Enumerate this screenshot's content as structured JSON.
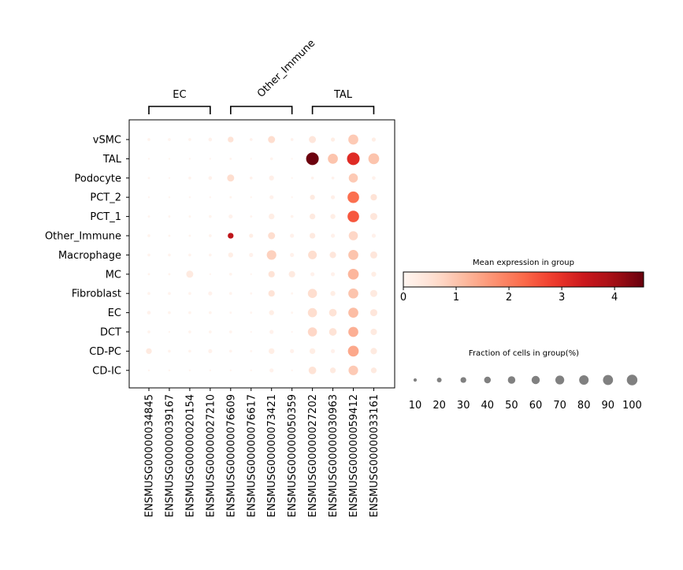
{
  "chart_data": {
    "type": "dotplot",
    "genes": [
      "ENSMUSG00000034845",
      "ENSMUSG00000039167",
      "ENSMUSG00000020154",
      "ENSMUSG00000027210",
      "ENSMUSG00000076609",
      "ENSMUSG00000076617",
      "ENSMUSG00000073421",
      "ENSMUSG00000050359",
      "ENSMUSG00000027202",
      "ENSMUSG00000030963",
      "ENSMUSG00000059412",
      "ENSMUSG00000033161"
    ],
    "cell_types": [
      "vSMC",
      "TAL",
      "Podocyte",
      "PCT_2",
      "PCT_1",
      "Other_Immune",
      "Macrophage",
      "MC",
      "Fibroblast",
      "EC",
      "DCT",
      "CD-PC",
      "CD-IC"
    ],
    "gene_groups": [
      {
        "label": "EC",
        "start": 0,
        "end": 3
      },
      {
        "label": "Other_Immune",
        "start": 4,
        "end": 7
      },
      {
        "label": "TAL",
        "start": 8,
        "end": 11
      }
    ],
    "mean_expression": [
      [
        0.05,
        0.02,
        0.05,
        0.1,
        0.5,
        0.1,
        0.6,
        0.1,
        0.4,
        0.2,
        0.9,
        0.2
      ],
      [
        0.02,
        0.01,
        0.02,
        0.02,
        0.05,
        0.02,
        0.05,
        0.02,
        4.5,
        1.0,
        3.1,
        1.0
      ],
      [
        0.02,
        0.02,
        0.05,
        0.1,
        0.6,
        0.1,
        0.15,
        0.02,
        0.1,
        0.1,
        0.9,
        0.1
      ],
      [
        0.02,
        0.01,
        0.02,
        0.02,
        0.05,
        0.02,
        0.1,
        0.02,
        0.3,
        0.15,
        2.2,
        0.5
      ],
      [
        0.02,
        0.02,
        0.03,
        0.03,
        0.1,
        0.02,
        0.2,
        0.05,
        0.3,
        0.2,
        2.5,
        0.4
      ],
      [
        0.05,
        0.03,
        0.03,
        0.05,
        3.6,
        0.2,
        0.6,
        0.1,
        0.3,
        0.1,
        0.7,
        0.1
      ],
      [
        0.05,
        0.05,
        0.05,
        0.05,
        0.2,
        0.1,
        0.8,
        0.1,
        0.6,
        0.4,
        1.0,
        0.4
      ],
      [
        0.05,
        0.05,
        0.3,
        0.02,
        0.05,
        0.02,
        0.5,
        0.3,
        0.1,
        0.1,
        1.2,
        0.2
      ],
      [
        0.05,
        0.05,
        0.05,
        0.1,
        0.05,
        0.02,
        0.5,
        0.02,
        0.6,
        0.2,
        1.0,
        0.3
      ],
      [
        0.1,
        0.05,
        0.05,
        0.05,
        0.02,
        0.02,
        0.2,
        0.02,
        0.6,
        0.5,
        1.1,
        0.4
      ],
      [
        0.05,
        0.02,
        0.05,
        0.05,
        0.05,
        0.02,
        0.1,
        0.02,
        0.7,
        0.5,
        1.3,
        0.3
      ],
      [
        0.3,
        0.05,
        0.05,
        0.1,
        0.05,
        0.02,
        0.2,
        0.1,
        0.2,
        0.1,
        1.4,
        0.3
      ],
      [
        0.02,
        0.02,
        0.02,
        0.02,
        0.02,
        0.02,
        0.1,
        0.02,
        0.5,
        0.3,
        0.9,
        0.3
      ]
    ],
    "fraction_of_cells": [
      [
        5,
        5,
        5,
        8,
        20,
        5,
        30,
        5,
        30,
        10,
        60,
        10
      ],
      [
        2,
        2,
        2,
        2,
        3,
        2,
        5,
        2,
        95,
        60,
        95,
        70
      ],
      [
        3,
        2,
        5,
        8,
        30,
        5,
        15,
        2,
        5,
        5,
        50,
        8
      ],
      [
        2,
        2,
        2,
        2,
        3,
        2,
        10,
        2,
        15,
        10,
        80,
        25
      ],
      [
        3,
        3,
        3,
        5,
        10,
        3,
        20,
        5,
        20,
        15,
        80,
        30
      ],
      [
        5,
        3,
        3,
        5,
        20,
        10,
        30,
        10,
        20,
        10,
        50,
        10
      ],
      [
        5,
        5,
        5,
        5,
        15,
        10,
        55,
        10,
        45,
        25,
        60,
        30
      ],
      [
        3,
        3,
        30,
        2,
        5,
        2,
        25,
        25,
        10,
        10,
        70,
        15
      ],
      [
        5,
        5,
        5,
        10,
        5,
        3,
        25,
        3,
        50,
        15,
        60,
        30
      ],
      [
        8,
        5,
        5,
        5,
        3,
        3,
        15,
        3,
        50,
        35,
        60,
        30
      ],
      [
        5,
        2,
        5,
        5,
        5,
        2,
        10,
        2,
        50,
        35,
        60,
        25
      ],
      [
        20,
        5,
        5,
        10,
        5,
        3,
        20,
        10,
        20,
        10,
        70,
        25
      ],
      [
        2,
        2,
        2,
        2,
        2,
        2,
        10,
        2,
        35,
        20,
        55,
        20
      ]
    ],
    "colorbar": {
      "title": "Mean expression in group",
      "min": 0,
      "max": 4.55,
      "ticks": [
        0,
        1,
        2,
        3,
        4
      ],
      "colormap": "Reds"
    },
    "size_legend": {
      "title": "Fraction of cells in group(%)",
      "values": [
        10,
        20,
        30,
        40,
        50,
        60,
        70,
        80,
        90,
        100
      ]
    }
  }
}
